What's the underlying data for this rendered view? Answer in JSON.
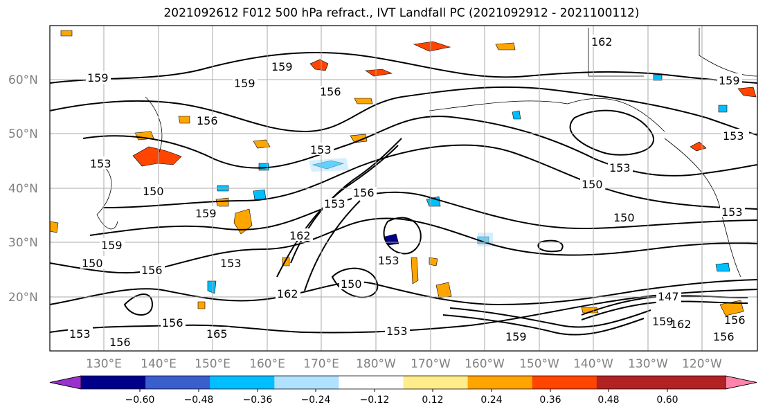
{
  "title": "2021092612 F012 500 hPa refract., IVT Landfall PC (2021092912 - 2021100112)",
  "lat_labels": [
    "60°N",
    "50°N",
    "40°N",
    "30°N",
    "20°N"
  ],
  "lon_labels": [
    "130°E",
    "140°E",
    "150°E",
    "160°E",
    "170°E",
    "180°W",
    "170°W",
    "160°W",
    "150°W",
    "140°W",
    "130°W",
    "120°W"
  ],
  "contour_labels": [
    "159",
    "159",
    "159",
    "156",
    "156",
    "153",
    "153",
    "150",
    "153",
    "150",
    "153",
    "156",
    "159",
    "162",
    "162",
    "159",
    "159",
    "156",
    "153",
    "150",
    "162",
    "156",
    "153",
    "165",
    "153",
    "150",
    "153",
    "156",
    "156",
    "153",
    "159",
    "162",
    "159",
    "147",
    "153",
    "156",
    "150"
  ],
  "colorbar": {
    "ticks": [
      "−0.60",
      "−0.48",
      "−0.36",
      "−0.24",
      "−0.12",
      "0.12",
      "0.24",
      "0.36",
      "0.48",
      "0.60"
    ],
    "colors": [
      "#9932cc",
      "#00008b",
      "#3a5fcd",
      "#00bfff",
      "#b0e2ff",
      "#ffffff",
      "#ffec8b",
      "#ffa500",
      "#ff4500",
      "#b22222",
      "#ff82ab"
    ]
  }
}
